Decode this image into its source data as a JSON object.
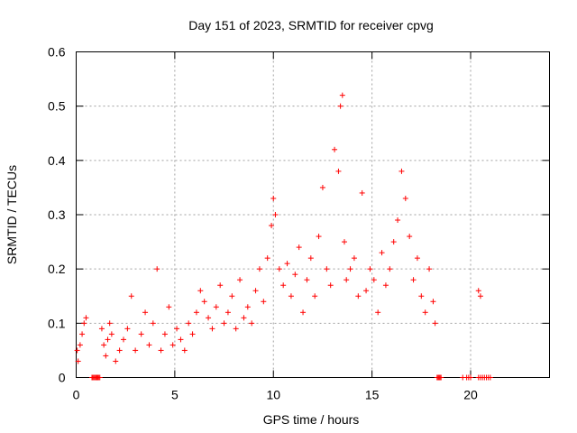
{
  "chart_data": {
    "type": "scatter",
    "title": "Day 151 of 2023, SRMTID for receiver cpvg",
    "xlabel": "GPS time / hours",
    "ylabel": "SRMTID / TECUs",
    "xlim": [
      0,
      24
    ],
    "ylim": [
      0,
      0.6
    ],
    "xticks": [
      0,
      5,
      10,
      15,
      20
    ],
    "yticks": [
      0,
      0.1,
      0.2,
      0.3,
      0.4,
      0.5,
      0.6
    ],
    "xtick_labels": [
      "0",
      "5",
      "10",
      "15",
      "20"
    ],
    "ytick_labels": [
      "0",
      "0.1",
      "0.2",
      "0.3",
      "0.4",
      "0.5",
      "0.6"
    ],
    "grid": true,
    "marker": "+",
    "color": "#ff0000",
    "series": [
      {
        "name": "SRMTID",
        "x": [
          0.05,
          0.1,
          0.2,
          0.3,
          0.4,
          0.5,
          1.3,
          1.4,
          1.5,
          1.6,
          1.7,
          1.8,
          2.0,
          2.2,
          2.4,
          2.6,
          2.8,
          3.0,
          3.3,
          3.5,
          3.7,
          3.9,
          4.1,
          4.3,
          4.5,
          4.7,
          4.9,
          5.1,
          5.3,
          5.5,
          5.7,
          5.9,
          6.1,
          6.3,
          6.5,
          6.7,
          6.9,
          7.1,
          7.3,
          7.5,
          7.7,
          7.9,
          8.1,
          8.3,
          8.5,
          8.7,
          8.9,
          9.1,
          9.3,
          9.5,
          9.7,
          9.9,
          10.0,
          10.1,
          10.3,
          10.5,
          10.7,
          10.9,
          11.1,
          11.3,
          11.5,
          11.7,
          11.9,
          12.1,
          12.3,
          12.5,
          12.7,
          12.9,
          13.1,
          13.3,
          13.4,
          13.5,
          13.6,
          13.7,
          13.9,
          14.1,
          14.3,
          14.5,
          14.7,
          14.9,
          15.1,
          15.3,
          15.5,
          15.7,
          15.9,
          16.1,
          16.3,
          16.5,
          16.7,
          16.9,
          17.1,
          17.3,
          17.5,
          17.7,
          17.9,
          18.1,
          18.2,
          20.4,
          20.5
        ],
        "y": [
          0.05,
          0.03,
          0.06,
          0.08,
          0.1,
          0.11,
          0.09,
          0.06,
          0.04,
          0.07,
          0.1,
          0.08,
          0.03,
          0.05,
          0.07,
          0.09,
          0.15,
          0.05,
          0.08,
          0.12,
          0.06,
          0.1,
          0.2,
          0.05,
          0.08,
          0.13,
          0.06,
          0.09,
          0.07,
          0.05,
          0.1,
          0.08,
          0.12,
          0.16,
          0.14,
          0.11,
          0.09,
          0.13,
          0.17,
          0.1,
          0.12,
          0.15,
          0.09,
          0.18,
          0.11,
          0.13,
          0.1,
          0.16,
          0.2,
          0.14,
          0.22,
          0.28,
          0.33,
          0.3,
          0.2,
          0.17,
          0.21,
          0.15,
          0.19,
          0.24,
          0.12,
          0.18,
          0.22,
          0.15,
          0.26,
          0.35,
          0.2,
          0.17,
          0.42,
          0.38,
          0.5,
          0.52,
          0.25,
          0.18,
          0.2,
          0.22,
          0.15,
          0.34,
          0.16,
          0.2,
          0.18,
          0.12,
          0.23,
          0.17,
          0.2,
          0.25,
          0.29,
          0.38,
          0.33,
          0.26,
          0.18,
          0.22,
          0.15,
          0.12,
          0.2,
          0.14,
          0.1,
          0.16,
          0.15
        ],
        "zeros_x": [
          0.8,
          0.85,
          0.9,
          0.95,
          1.0,
          1.05,
          1.1,
          1.15,
          1.2,
          18.3,
          18.35,
          18.4,
          18.45,
          18.5,
          19.6,
          19.8,
          19.9,
          20.0,
          20.4,
          20.5,
          20.6,
          20.7,
          20.8,
          20.9,
          21.0
        ]
      }
    ]
  }
}
